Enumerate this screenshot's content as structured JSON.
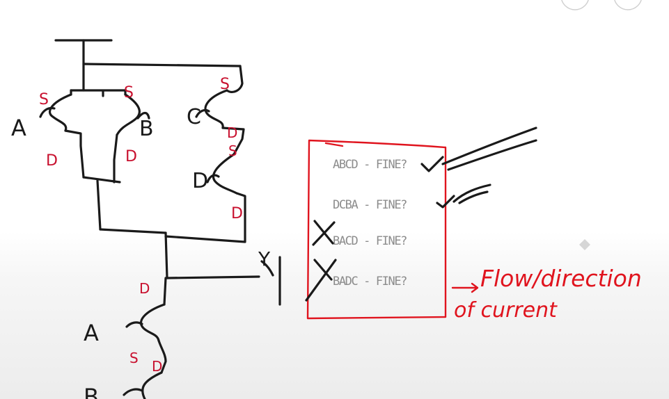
{
  "node_labels": {
    "top_A": "A",
    "top_B": "B",
    "top_C": "C",
    "top_D": "D",
    "bottom_A": "A",
    "bottom_B": "B",
    "output": "Y"
  },
  "terminal_labels": {
    "a_source": "S",
    "a_drain": "D",
    "b_source": "S",
    "b_drain": "D",
    "c_source": "S",
    "c_drain": "D",
    "d_source": "S",
    "d_drain": "D",
    "bottom_a_drain": "D",
    "bottom_a_source": "S",
    "bottom_b_drain": "D"
  },
  "options": [
    {
      "text": "ABCD - FINE?",
      "mark": "tick"
    },
    {
      "text": "DCBA - FINE?",
      "mark": "tick"
    },
    {
      "text": "BACD - FINE?",
      "mark": "cross"
    },
    {
      "text": "BADC - FINE?",
      "mark": "cross"
    }
  ],
  "note": {
    "line1": "Flow/direction",
    "line2": "of current"
  },
  "colors": {
    "ink": "#1a1a1a",
    "annotation": "#e0141e",
    "list_text": "#8c8c8c"
  }
}
